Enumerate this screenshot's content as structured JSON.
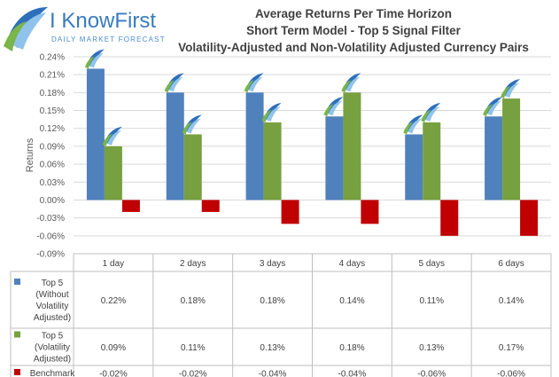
{
  "logo": {
    "name": "I KnowFirst",
    "tagline": "DAILY MARKET FORECAST"
  },
  "titles": [
    "Average Returns Per Time Horizon",
    "Short Term Model - Top 5 Signal Filter",
    "Volatility-Adjusted and Non-Volatility Adjusted Currency Pairs"
  ],
  "chart_data": {
    "type": "bar",
    "title": "Average Returns Per Time Horizon / Short Term Model - Top 5 Signal Filter / Volatility-Adjusted and Non-Volatility Adjusted Currency Pairs",
    "ylabel": "Returns",
    "xlabel": "",
    "ylim": [
      -0.09,
      0.24
    ],
    "yticks": [
      "0.24%",
      "0.21%",
      "0.18%",
      "0.15%",
      "0.12%",
      "0.09%",
      "0.06%",
      "0.03%",
      "0.00%",
      "-0.03%",
      "-0.06%",
      "-0.09%"
    ],
    "ytick_values": [
      0.24,
      0.21,
      0.18,
      0.15,
      0.12,
      0.09,
      0.06,
      0.03,
      0.0,
      -0.03,
      -0.06,
      -0.09
    ],
    "grid": true,
    "categories": [
      "1 day",
      "2 days",
      "3 days",
      "4 days",
      "5 days",
      "6 days"
    ],
    "series": [
      {
        "name": "Top 5 (Without Volatility Adjusted)",
        "label_lines": [
          "Top 5",
          "(Without",
          "Volatility",
          "Adjusted)"
        ],
        "color": "#4f81bd",
        "values": [
          0.22,
          0.18,
          0.18,
          0.14,
          0.11,
          0.14
        ],
        "labels": [
          "0.22%",
          "0.18%",
          "0.18%",
          "0.14%",
          "0.11%",
          "0.14%"
        ]
      },
      {
        "name": "Top 5 (Volatility Adjusted)",
        "label_lines": [
          "Top 5",
          "(Volatility",
          "Adjusted)"
        ],
        "color": "#77a040",
        "values": [
          0.09,
          0.11,
          0.13,
          0.18,
          0.13,
          0.17
        ],
        "labels": [
          "0.09%",
          "0.11%",
          "0.13%",
          "0.18%",
          "0.13%",
          "0.17%"
        ]
      },
      {
        "name": "Benchmark",
        "label_lines": [
          "Benchmark"
        ],
        "color": "#c00000",
        "values": [
          -0.02,
          -0.02,
          -0.04,
          -0.04,
          -0.06,
          -0.06
        ],
        "labels": [
          "-0.02%",
          "-0.02%",
          "-0.04%",
          "-0.04%",
          "-0.06%",
          "-0.06%"
        ]
      }
    ],
    "marker_icon": "knowfirst-leaf-icon"
  }
}
